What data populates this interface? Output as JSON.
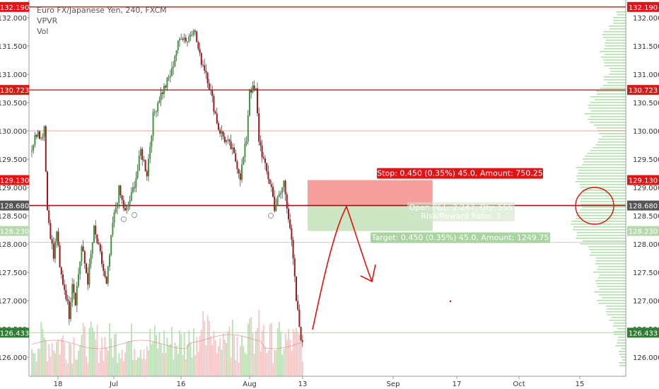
{
  "legend": {
    "symbol": "Euro FX/Japanese Yen, 240, FXCM",
    "indicator_1": "VPVR",
    "indicator_2": "Vol"
  },
  "colors": {
    "up": "#3c9a3c",
    "down": "#a01818",
    "resistance": "#d01515",
    "stop_zone": "#f79a9a",
    "target_zone": "#c9e4c0",
    "volume_profile": "#a8d8a0",
    "axis_red_tag": "#e01414",
    "axis_green_tag": "#2e7d32",
    "axis_dark_tag": "#555555",
    "axis_lightgreen_tag": "#b5d9ad",
    "annotation": "#e01010"
  },
  "chart_data": {
    "type": "candlestick",
    "title": "Euro FX/Japanese Yen, 240, FXCM",
    "xlabel": "",
    "ylabel": "",
    "ylim": [
      125.6,
      132.3
    ],
    "y_ticks": [
      126.0,
      126.5,
      127.0,
      127.5,
      128.0,
      128.5,
      129.0,
      129.5,
      130.0,
      130.5,
      131.0,
      131.5,
      132.0
    ],
    "y_tick_labels": [
      "126.000",
      "126.500",
      "127.000",
      "127.500",
      "128.000",
      "128.500",
      "129.000",
      "129.500",
      "130.000",
      "130.500",
      "131.000",
      "131.500",
      "132.000"
    ],
    "x_ticks": [
      "18",
      "Jul",
      "16",
      "Aug",
      "13",
      "Sep",
      "17",
      "Oct",
      "15"
    ],
    "price_path": [
      [
        0,
        129.7
      ],
      [
        4,
        130.05
      ],
      [
        6,
        129.85
      ],
      [
        8,
        130.1
      ],
      [
        10,
        128.6
      ],
      [
        14,
        127.75
      ],
      [
        16,
        128.25
      ],
      [
        18,
        127.55
      ],
      [
        22,
        127.1
      ],
      [
        24,
        126.75
      ],
      [
        26,
        127.35
      ],
      [
        28,
        127.0
      ],
      [
        32,
        127.95
      ],
      [
        36,
        127.35
      ],
      [
        40,
        128.25
      ],
      [
        44,
        127.8
      ],
      [
        48,
        127.25
      ],
      [
        52,
        128.35
      ],
      [
        56,
        128.95
      ],
      [
        60,
        128.55
      ],
      [
        64,
        128.85
      ],
      [
        68,
        129.3
      ],
      [
        70,
        129.65
      ],
      [
        74,
        129.25
      ],
      [
        78,
        130.25
      ],
      [
        82,
        130.6
      ],
      [
        86,
        130.8
      ],
      [
        90,
        131.05
      ],
      [
        92,
        131.35
      ],
      [
        96,
        131.7
      ],
      [
        100,
        131.6
      ],
      [
        104,
        131.85
      ],
      [
        108,
        131.3
      ],
      [
        112,
        131.05
      ],
      [
        116,
        130.55
      ],
      [
        120,
        130.05
      ],
      [
        124,
        129.85
      ],
      [
        128,
        129.7
      ],
      [
        132,
        129.4
      ],
      [
        134,
        129.2
      ],
      [
        138,
        129.85
      ],
      [
        140,
        130.75
      ],
      [
        144,
        130.7
      ],
      [
        146,
        129.85
      ],
      [
        150,
        129.35
      ],
      [
        154,
        129.0
      ],
      [
        156,
        128.65
      ],
      [
        160,
        128.9
      ],
      [
        162,
        129.1
      ],
      [
        164,
        128.7
      ],
      [
        166,
        128.3
      ],
      [
        168,
        127.7
      ],
      [
        170,
        127.0
      ],
      [
        172,
        126.55
      ],
      [
        174,
        126.2
      ]
    ],
    "candle_count": 175,
    "volume_range": [
      0,
      100
    ],
    "levels": [
      {
        "price": 132.19,
        "label": "132.190",
        "style": "resistance"
      },
      {
        "price": 130.723,
        "label": "130.723",
        "style": "resistance"
      },
      {
        "price": 130.0,
        "label": "",
        "style": "light"
      },
      {
        "price": 128.68,
        "label": "128.680",
        "style": "resistance-dark"
      },
      {
        "price": 128.03,
        "label": "",
        "style": "light-gray"
      },
      {
        "price": 126.433,
        "label": "",
        "style": "light-green"
      }
    ],
    "axis_tags": [
      {
        "price": 132.19,
        "label": "132.190",
        "kind": "red"
      },
      {
        "price": 130.723,
        "label": "130.723",
        "kind": "red"
      },
      {
        "price": 129.13,
        "label": "129.130",
        "kind": "red"
      },
      {
        "price": 128.68,
        "label": "128.680",
        "kind": "dark"
      },
      {
        "price": 128.23,
        "label": "128.230",
        "kind": "lightgreen"
      },
      {
        "price": 126.433,
        "label": "126.433",
        "kind": "green"
      }
    ],
    "position": {
      "entry": 128.68,
      "stop": 129.13,
      "target": 128.23,
      "start_index": 175,
      "end_index": 254,
      "stop_label": "Stop: 0.450 (0.35%) 45.0, Amount: 750.25",
      "pnl_label": "Open P&L: 2.247, Qty: 555",
      "rr_label": "Risk/Reward Ratio: 1",
      "target_label": "Target: 0.450 (0.35%) 45.0, Amount: 1249.75"
    },
    "annotation": {
      "type": "hand-drawn projection",
      "description_points": [
        [
          176,
          126.5
        ],
        [
          190,
          128.65
        ],
        [
          200,
          127.55
        ],
        [
          205,
          127.2
        ]
      ]
    }
  }
}
